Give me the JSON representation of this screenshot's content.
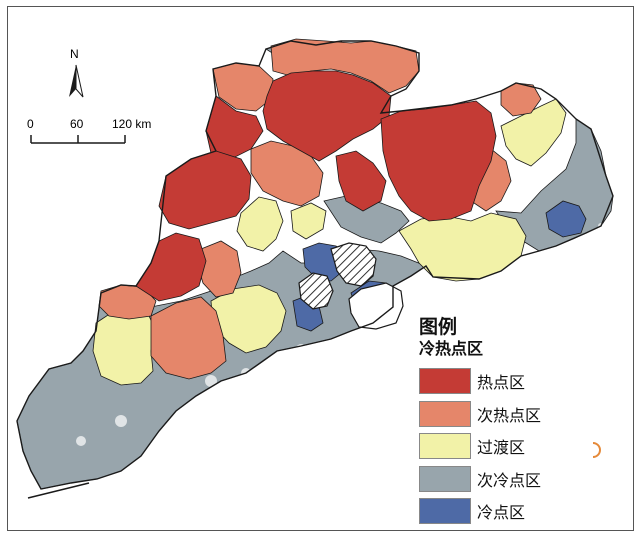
{
  "map": {
    "north_label": "N",
    "scale": {
      "ticks": [
        "0",
        "60"
      ],
      "end_label": "120 km"
    }
  },
  "legend": {
    "title": "图例",
    "subtitle": "冷热点区",
    "items": [
      {
        "label": "热点区",
        "color": "#c43b35"
      },
      {
        "label": "次热点区",
        "color": "#e5866a"
      },
      {
        "label": "过渡区",
        "color": "#f2f2a8"
      },
      {
        "label": "次冷点区",
        "color": "#98a5ac"
      },
      {
        "label": "冷点区",
        "color": "#4e6aa6"
      }
    ]
  },
  "colors": {
    "hatch": "#333333",
    "island_ring": "#e58a3a",
    "boundary": "#1a1a1a",
    "coast_fringe": "#ffffff"
  }
}
